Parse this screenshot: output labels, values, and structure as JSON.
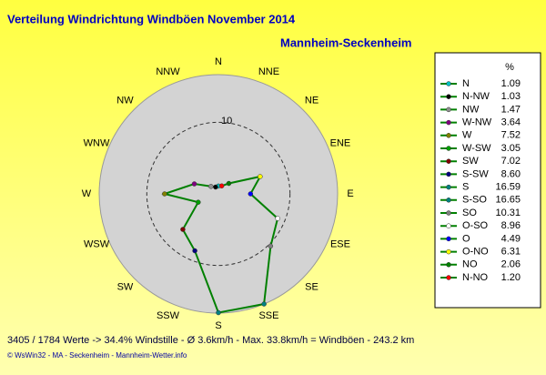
{
  "chart_data": {
    "type": "radar",
    "title": "Verteilung Windrichtung Windböen  November 2014",
    "subtitle": "Mannheim-Seckenheim",
    "directions": [
      "N",
      "NNE",
      "NE",
      "ENE",
      "E",
      "ESE",
      "SE",
      "SSE",
      "S",
      "SSW",
      "SW",
      "WSW",
      "W",
      "WNW",
      "NW",
      "NNW"
    ],
    "rlim": [
      0,
      16.65
    ],
    "rticks": [
      10
    ],
    "line_color": "#008000",
    "fill": "#d3d3d3",
    "legend_header": "%",
    "categories": [
      "N",
      "N-NW",
      "NW",
      "W-NW",
      "W",
      "W-SW",
      "SW",
      "S-SW",
      "S",
      "S-SO",
      "SO",
      "O-SO",
      "O",
      "O-NO",
      "NO",
      "N-NO"
    ],
    "values": [
      1.09,
      1.03,
      1.47,
      3.64,
      7.52,
      3.05,
      7.02,
      8.6,
      16.59,
      16.65,
      10.31,
      8.96,
      4.49,
      6.31,
      2.06,
      1.2
    ],
    "value_labels": [
      "1.09",
      "1.03",
      "1.47",
      "3.64",
      "7.52",
      "3.05",
      "7.02",
      "8.60",
      "16.59",
      "16.65",
      "10.31",
      "8.96",
      "4.49",
      "6.31",
      "2.06",
      "1.20"
    ],
    "colors": [
      "#00c0c0",
      "#000000",
      "#909090",
      "#800080",
      "#808000",
      "#00a000",
      "#800000",
      "#000080",
      "#008080",
      "#008080",
      "#808080",
      "#ffffff",
      "#0000ff",
      "#ffff00",
      "#008000",
      "#ff0000"
    ],
    "footer": "3405 / 1784 Werte  -> 34.4% Windstille   -   Ø 3.6km/h  -  Max. 33.8km/h = Windböen   -   243.2 km",
    "credit": "© WsWin32  -  MA - Seckenheim  -  Mannheim-Wetter.info"
  }
}
